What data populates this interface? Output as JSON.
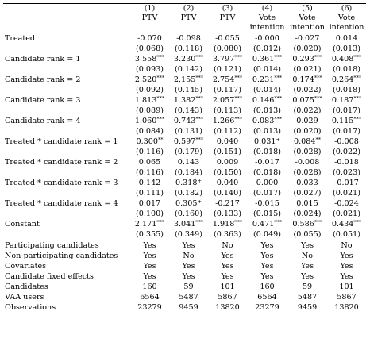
{
  "header": {
    "numbers": [
      "(1)",
      "(2)",
      "(3)",
      "(4)",
      "(5)",
      "(6)"
    ],
    "line1": [
      "PTV",
      "PTV",
      "PTV",
      "Vote",
      "Vote",
      "Vote"
    ],
    "line2": [
      "",
      "",
      "",
      "intention",
      "intention",
      "intention"
    ]
  },
  "coef_rows": [
    {
      "label": "Treated",
      "coef": [
        [
          "-0.070",
          ""
        ],
        [
          "-0.098",
          ""
        ],
        [
          "-0.055",
          ""
        ],
        [
          "-0.000",
          ""
        ],
        [
          "-0.027",
          ""
        ],
        [
          "0.014",
          ""
        ]
      ],
      "se": [
        "(0.068)",
        "(0.118)",
        "(0.080)",
        "(0.012)",
        "(0.020)",
        "(0.013)"
      ]
    },
    {
      "label": "Candidate rank = 1",
      "coef": [
        [
          "3.558",
          "***"
        ],
        [
          "3.230",
          "***"
        ],
        [
          "3.797",
          "***"
        ],
        [
          "0.361",
          "***"
        ],
        [
          "0.293",
          "***"
        ],
        [
          "0.408",
          "***"
        ]
      ],
      "se": [
        "(0.093)",
        "(0.142)",
        "(0.121)",
        "(0.014)",
        "(0.021)",
        "(0.018)"
      ]
    },
    {
      "label": "Candidate rank = 2",
      "coef": [
        [
          "2.520",
          "***"
        ],
        [
          "2.155",
          "***"
        ],
        [
          "2.754",
          "***"
        ],
        [
          "0.231",
          "***"
        ],
        [
          "0.174",
          "***"
        ],
        [
          "0.264",
          "***"
        ]
      ],
      "se": [
        "(0.092)",
        "(0.145)",
        "(0.117)",
        "(0.014)",
        "(0.022)",
        "(0.018)"
      ]
    },
    {
      "label": "Candidate rank = 3",
      "coef": [
        [
          "1.813",
          "***"
        ],
        [
          "1.382",
          "***"
        ],
        [
          "2.057",
          "***"
        ],
        [
          "0.146",
          "***"
        ],
        [
          "0.075",
          "***"
        ],
        [
          "0.187",
          "***"
        ]
      ],
      "se": [
        "(0.089)",
        "(0.143)",
        "(0.113)",
        "(0.013)",
        "(0.022)",
        "(0.017)"
      ]
    },
    {
      "label": "Candidate rank = 4",
      "coef": [
        [
          "1.060",
          "***"
        ],
        [
          "0.743",
          "***"
        ],
        [
          "1.266",
          "***"
        ],
        [
          "0.083",
          "***"
        ],
        [
          "0.029",
          ""
        ],
        [
          "0.115",
          "***"
        ]
      ],
      "se": [
        "(0.084)",
        "(0.131)",
        "(0.112)",
        "(0.013)",
        "(0.020)",
        "(0.017)"
      ]
    },
    {
      "label": "Treated * candidate rank = 1",
      "coef": [
        [
          "0.300",
          "**"
        ],
        [
          "0.597",
          "***"
        ],
        [
          "0.040",
          ""
        ],
        [
          "0.031",
          "+"
        ],
        [
          "0.084",
          "**"
        ],
        [
          "-0.008",
          ""
        ]
      ],
      "se": [
        "(0.116)",
        "(0.179)",
        "(0.151)",
        "(0.018)",
        "(0.028)",
        "(0.022)"
      ]
    },
    {
      "label": "Treated * candidate rank = 2",
      "coef": [
        [
          "0.065",
          ""
        ],
        [
          "0.143",
          ""
        ],
        [
          "0.009",
          ""
        ],
        [
          "-0.017",
          ""
        ],
        [
          "-0.008",
          ""
        ],
        [
          "-0.018",
          ""
        ]
      ],
      "se": [
        "(0.116)",
        "(0.184)",
        "(0.150)",
        "(0.018)",
        "(0.028)",
        "(0.023)"
      ]
    },
    {
      "label": "Treated * candidate rank = 3",
      "coef": [
        [
          "0.142",
          ""
        ],
        [
          "0.318",
          "+"
        ],
        [
          "0.040",
          ""
        ],
        [
          "0.000",
          ""
        ],
        [
          "0.033",
          ""
        ],
        [
          "-0.017",
          ""
        ]
      ],
      "se": [
        "(0.111)",
        "(0.182)",
        "(0.140)",
        "(0.017)",
        "(0.027)",
        "(0.021)"
      ]
    },
    {
      "label": "Treated * candidate rank = 4",
      "coef": [
        [
          "0.017",
          ""
        ],
        [
          "0.305",
          "+"
        ],
        [
          "-0.217",
          ""
        ],
        [
          "-0.015",
          ""
        ],
        [
          "0.015",
          ""
        ],
        [
          "-0.024",
          ""
        ]
      ],
      "se": [
        "(0.100)",
        "(0.160)",
        "(0.133)",
        "(0.015)",
        "(0.024)",
        "(0.021)"
      ]
    },
    {
      "label": "Constant",
      "coef": [
        [
          "2.171",
          "***"
        ],
        [
          "3.041",
          "***"
        ],
        [
          "1.918",
          "***"
        ],
        [
          "0.471",
          "***"
        ],
        [
          "0.586",
          "***"
        ],
        [
          "0.434",
          "***"
        ]
      ],
      "se": [
        "(0.355)",
        "(0.349)",
        "(0.363)",
        "(0.049)",
        "(0.055)",
        "(0.051)"
      ]
    }
  ],
  "footer_rows": [
    {
      "label": "Participating candidates",
      "values": [
        "Yes",
        "Yes",
        "No",
        "Yes",
        "Yes",
        "No"
      ]
    },
    {
      "label": "Non-participating candidates",
      "values": [
        "Yes",
        "No",
        "Yes",
        "Yes",
        "No",
        "Yes"
      ]
    },
    {
      "label": "Covariates",
      "values": [
        "Yes",
        "Yes",
        "Yes",
        "Yes",
        "Yes",
        "Yes"
      ]
    },
    {
      "label": "Candidate fixed effects",
      "values": [
        "Yes",
        "Yes",
        "Yes",
        "Yes",
        "Yes",
        "Yes"
      ]
    },
    {
      "label": "Candidates",
      "values": [
        "160",
        "59",
        "101",
        "160",
        "59",
        "101"
      ]
    },
    {
      "label": "VAA users",
      "values": [
        "6564",
        "5487",
        "5867",
        "6564",
        "5487",
        "5867"
      ]
    },
    {
      "label": "Observations",
      "values": [
        "23279",
        "9459",
        "13820",
        "23279",
        "9459",
        "13820"
      ]
    }
  ]
}
